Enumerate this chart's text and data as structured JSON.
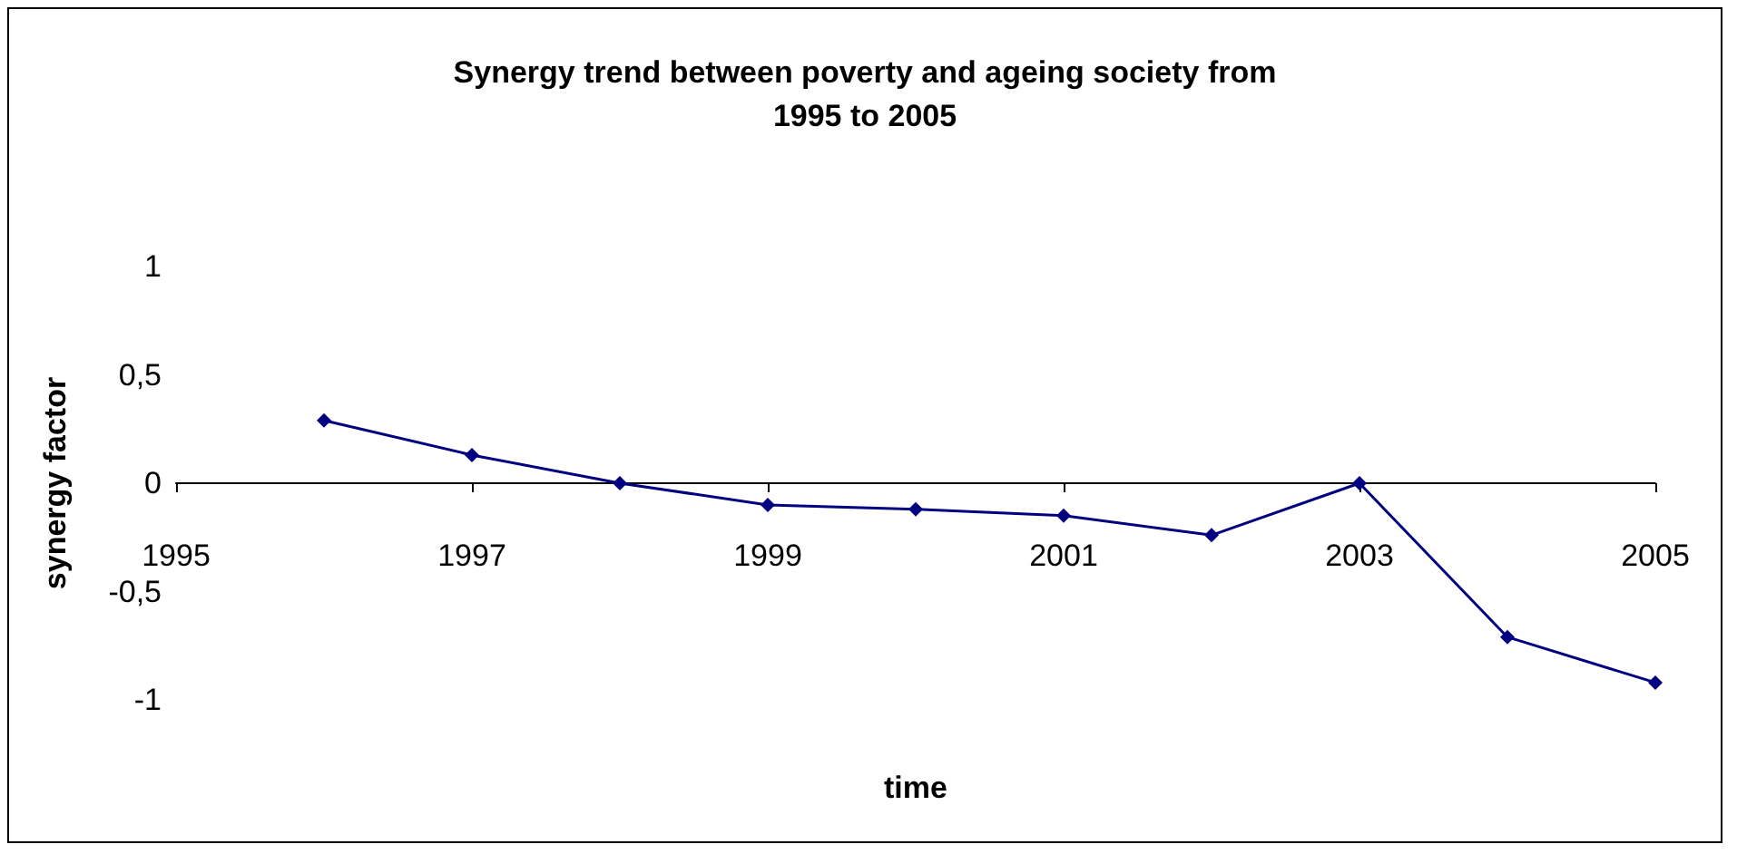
{
  "chart_data": {
    "type": "line",
    "title": "Synergy trend between poverty and ageing society from\n1995 to 2005",
    "xlabel": "time",
    "ylabel": "synergy factor",
    "x": [
      1996,
      1997,
      1998,
      1999,
      2000,
      2001,
      2002,
      2003,
      2004,
      2005
    ],
    "series": [
      {
        "color": "#000080",
        "values": [
          0.29,
          0.13,
          0,
          -0.1,
          -0.12,
          -0.15,
          -0.24,
          0,
          -0.71,
          -0.92
        ]
      }
    ],
    "xlim": [
      1995,
      2005
    ],
    "xticks": [
      1995,
      1997,
      1999,
      2001,
      2003,
      2005
    ],
    "ylim": [
      -1,
      1
    ],
    "yticks": [
      {
        "value": -1,
        "label": "-1"
      },
      {
        "value": -0.5,
        "label": "-0,5"
      },
      {
        "value": 0,
        "label": "0"
      },
      {
        "value": 0.5,
        "label": "0,5"
      },
      {
        "value": 1,
        "label": "1"
      }
    ],
    "grid": false,
    "legend": false,
    "marker": "diamond",
    "line_style": "solid"
  }
}
